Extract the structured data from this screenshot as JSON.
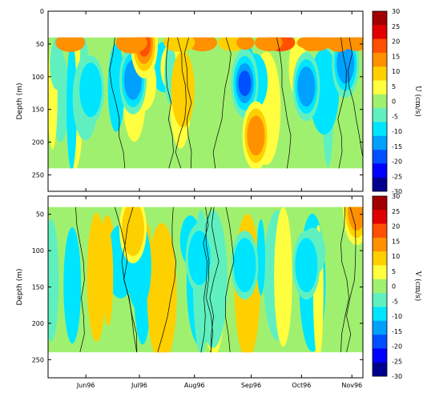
{
  "chart_data": [
    {
      "type": "heatmap",
      "panel": "top",
      "title": "",
      "xlabel": "",
      "ylabel": "Depth (m)",
      "colorbar_label": "U (cm/s)",
      "x_tick_labels": [
        "Jun96",
        "Jul96",
        "Aug96",
        "Sep96",
        "Oct96",
        "Nov96"
      ],
      "y_ticks": [
        0,
        50,
        100,
        150,
        200,
        250
      ],
      "ylim": [
        0,
        275
      ],
      "y_inverted": true,
      "data_depth_range": [
        40,
        240
      ],
      "colorbar_ticks": [
        30,
        25,
        20,
        15,
        10,
        5,
        0,
        -5,
        -10,
        -15,
        -20,
        -25,
        -30
      ],
      "contour_level": 0,
      "features": [
        {
          "month": "Jun96",
          "depth": 120,
          "value": -10
        },
        {
          "month": "Jul96",
          "depth": 105,
          "value": -12
        },
        {
          "month": "Jul96",
          "depth": 50,
          "value": 18
        },
        {
          "month": "Sep96",
          "depth": 110,
          "value": -18
        },
        {
          "month": "Oct96",
          "depth": 115,
          "value": -13
        },
        {
          "month": "Nov96",
          "depth": 80,
          "value": -13
        },
        {
          "month": "Sep96",
          "depth": 190,
          "value": 12
        }
      ]
    },
    {
      "type": "heatmap",
      "panel": "bottom",
      "title": "",
      "xlabel": "",
      "ylabel": "Depth (m)",
      "colorbar_label": "V (cm/s)",
      "x_tick_labels": [
        "Jun96",
        "Jul96",
        "Aug96",
        "Sep96",
        "Oct96",
        "Nov96"
      ],
      "y_ticks": [
        50,
        100,
        150,
        200,
        250
      ],
      "ylim": [
        25,
        275
      ],
      "y_inverted": true,
      "data_depth_range": [
        40,
        240
      ],
      "colorbar_ticks": [
        30,
        25,
        20,
        15,
        10,
        5,
        0,
        -5,
        -10,
        -15,
        -20,
        -25,
        -30
      ],
      "contour_level": 0,
      "features": [
        {
          "month": "Aug96",
          "depth": 110,
          "value": -8
        },
        {
          "month": "Sep96",
          "depth": 120,
          "value": -9
        },
        {
          "month": "Oct96",
          "depth": 120,
          "value": -7
        },
        {
          "month": "Jul96",
          "depth": 70,
          "value": 10
        },
        {
          "month": "Nov96",
          "depth": 45,
          "value": 15
        }
      ]
    }
  ],
  "colorscale": [
    "#00008f",
    "#0000ff",
    "#0050ff",
    "#00a0ff",
    "#00e5ff",
    "#60f0c0",
    "#a0f070",
    "#ffff40",
    "#ffd000",
    "#ff9000",
    "#ff5000",
    "#e00000",
    "#a00000"
  ]
}
